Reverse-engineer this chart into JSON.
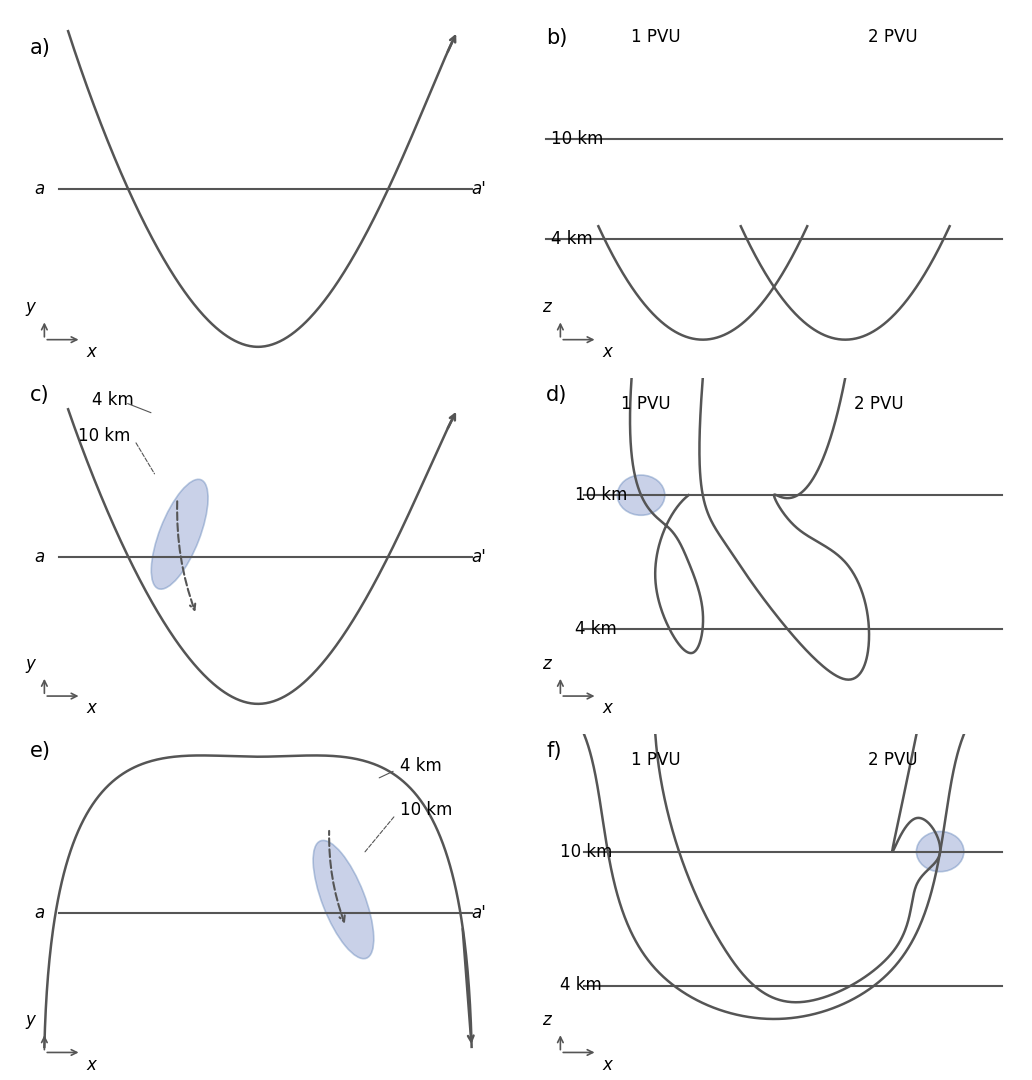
{
  "bg_color": "#ffffff",
  "line_color": "#555555",
  "line_width": 1.8,
  "arrow_color": "#555555",
  "text_color": "#000000",
  "blue_fill": "#8899cc",
  "blue_alpha": 0.45,
  "panel_labels": [
    "a)",
    "b)",
    "c)",
    "d)",
    "e)",
    "f)"
  ],
  "label_fontsize": 15,
  "axis_label_fontsize": 12,
  "km_label_fontsize": 12,
  "pvu_label_fontsize": 12
}
